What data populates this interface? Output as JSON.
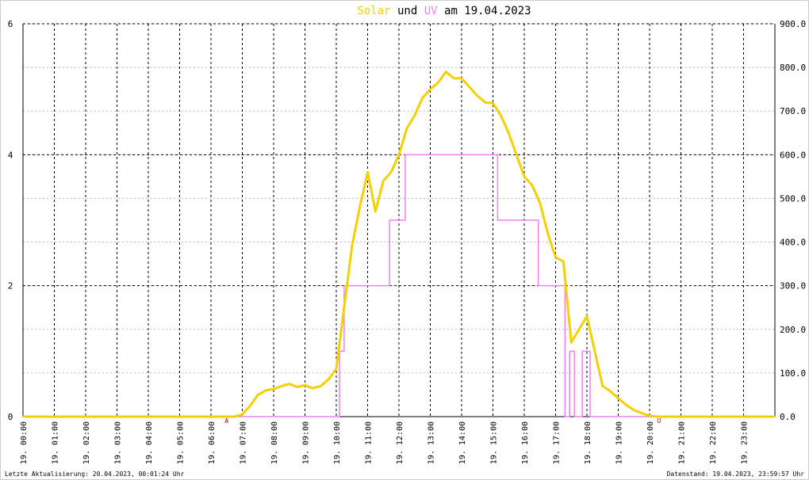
{
  "chart_data": {
    "type": "line",
    "title_connector": "und",
    "title_date": "am 19.04.2023",
    "xlim": [
      0,
      24
    ],
    "xticks": [
      {
        "value": 0,
        "label": "19. 00:00"
      },
      {
        "value": 1,
        "label": "19. 01:00"
      },
      {
        "value": 2,
        "label": "19. 02:00"
      },
      {
        "value": 3,
        "label": "19. 03:00"
      },
      {
        "value": 4,
        "label": "19. 04:00"
      },
      {
        "value": 5,
        "label": "19. 05:00"
      },
      {
        "value": 6,
        "label": "19. 06:00"
      },
      {
        "value": 7,
        "label": "19. 07:00"
      },
      {
        "value": 8,
        "label": "19. 08:00"
      },
      {
        "value": 9,
        "label": "19. 09:00"
      },
      {
        "value": 10,
        "label": "19. 10:00"
      },
      {
        "value": 11,
        "label": "19. 11:00"
      },
      {
        "value": 12,
        "label": "19. 12:00"
      },
      {
        "value": 13,
        "label": "19. 13:00"
      },
      {
        "value": 14,
        "label": "19. 14:00"
      },
      {
        "value": 15,
        "label": "19. 15:00"
      },
      {
        "value": 16,
        "label": "19. 16:00"
      },
      {
        "value": 17,
        "label": "19. 17:00"
      },
      {
        "value": 18,
        "label": "19. 18:00"
      },
      {
        "value": 19,
        "label": "19. 19:00"
      },
      {
        "value": 20,
        "label": "19. 20:00"
      },
      {
        "value": 21,
        "label": "19. 21:00"
      },
      {
        "value": 22,
        "label": "19. 22:00"
      },
      {
        "value": 23,
        "label": "19. 23:00"
      }
    ],
    "ylim": [
      0,
      6
    ],
    "yticks": [
      0,
      2,
      4,
      6
    ],
    "y2lim": [
      0,
      900
    ],
    "y2ticks": [
      {
        "value": 0,
        "label": "0.0"
      },
      {
        "value": 100,
        "label": "100.0"
      },
      {
        "value": 200,
        "label": "200.0"
      },
      {
        "value": 300,
        "label": "300.0"
      },
      {
        "value": 400,
        "label": "400.0"
      },
      {
        "value": 500,
        "label": "500.0"
      },
      {
        "value": 600,
        "label": "600.0"
      },
      {
        "value": 700,
        "label": "700.0"
      },
      {
        "value": 800,
        "label": "800.0"
      },
      {
        "value": 900,
        "label": "900.0"
      }
    ],
    "grid": true,
    "series": [
      {
        "name": "Solar",
        "color": "#f5d000",
        "axis": "y2",
        "x": [
          0,
          6.5,
          6.75,
          7,
          7.25,
          7.5,
          7.75,
          8,
          8.25,
          8.5,
          8.75,
          9,
          9.25,
          9.5,
          9.75,
          10,
          10.25,
          10.5,
          10.75,
          11,
          11.25,
          11.5,
          11.75,
          12,
          12.25,
          12.5,
          12.75,
          13,
          13.25,
          13.5,
          13.75,
          14,
          14.25,
          14.5,
          14.75,
          15,
          15.25,
          15.5,
          15.75,
          16,
          16.25,
          16.5,
          16.75,
          17,
          17.25,
          17.5,
          17.75,
          18,
          18.25,
          18.5,
          18.75,
          19,
          19.25,
          19.5,
          19.75,
          20,
          20.25,
          24
        ],
        "values": [
          0,
          0,
          0,
          5,
          25,
          50,
          60,
          63,
          70,
          75,
          68,
          72,
          65,
          70,
          85,
          110,
          250,
          390,
          480,
          560,
          470,
          540,
          560,
          600,
          660,
          690,
          730,
          750,
          765,
          790,
          775,
          775,
          755,
          735,
          720,
          718,
          690,
          650,
          600,
          550,
          530,
          490,
          420,
          365,
          355,
          170,
          200,
          230,
          150,
          70,
          58,
          42,
          27,
          15,
          8,
          2,
          0,
          0
        ]
      },
      {
        "name": "UV",
        "color": "#ee82ee",
        "x": [
          0,
          10.1,
          10.1,
          10.25,
          10.25,
          11.7,
          11.7,
          12.2,
          12.2,
          15.15,
          15.15,
          16.45,
          16.45,
          17.3,
          17.3,
          17.45,
          17.45,
          17.6,
          17.6,
          17.85,
          17.85,
          18.1,
          18.1,
          24
        ],
        "values": [
          0,
          0,
          1,
          1,
          2,
          2,
          3,
          3,
          4,
          4,
          3,
          3,
          2,
          2,
          0,
          0,
          1,
          1,
          0,
          0,
          1,
          1,
          0,
          0
        ]
      }
    ],
    "annotations": [
      {
        "text": "A",
        "x": 6.5
      },
      {
        "text": "U",
        "x": 20.3
      }
    ],
    "footer_left": "Letzte Aktualisierung: 20.04.2023, 00:01:24 Uhr",
    "footer_right": "Datenstand: 19.04.2023, 23:59:57 Uhr"
  }
}
